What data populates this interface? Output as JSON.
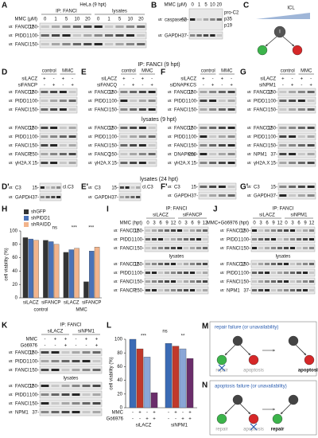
{
  "ib_prefix": "IB:",
  "sections": [
    "IP: FANCI (9 hpt)",
    "lysates (9 hpt)",
    "lysates (24 hpt)"
  ],
  "panels": [
    {
      "label": "A",
      "title": "HeLa (9 hpt)",
      "groups": [
        "IP: FANCI",
        "lysates"
      ],
      "cond": "MMC (μM)",
      "lanes": [
        "0",
        "1",
        "5",
        "10",
        "20",
        "0",
        "1",
        "5",
        "10",
        "20"
      ],
      "blots": [
        {
          "rows": [
            {
              "ib": "FANCD2",
              "mw": "150-"
            },
            {
              "ib": "PIDD1",
              "mw": "100-"
            },
            {
              "ib": "FANCI",
              "mw": "150-"
            }
          ]
        }
      ]
    },
    {
      "label": "B",
      "cond": "MMC (μM)",
      "lanes": [
        "0",
        "1",
        "5",
        "10",
        "20"
      ],
      "blots": [
        {
          "rows": [
            {
              "ib": "caspase-2",
              "mw": "50-",
              "notes": [
                "pro-C2",
                "p35",
                "p19"
              ]
            },
            {
              "ib": "GAPDH",
              "mw": "37-"
            }
          ]
        }
      ]
    },
    {
      "label": "C",
      "kind": "diagram",
      "texts": [
        "ICL",
        "I"
      ]
    },
    {
      "label": "D",
      "groups": [
        "control",
        "MMC"
      ],
      "toggles": [
        {
          "name": "siLACZ",
          "signs": [
            "+",
            "-",
            "+",
            "-"
          ]
        },
        {
          "name": "siFANCP",
          "signs": [
            "-",
            "+",
            "-",
            "+"
          ]
        }
      ],
      "blots": [
        {
          "rows": [
            {
              "ib": "FANCD2",
              "mw": "150-"
            },
            {
              "ib": "PIDD1",
              "mw": "100-"
            },
            {
              "ib": "FANCI",
              "mw": "150-"
            }
          ]
        },
        {
          "rows": [
            {
              "ib": "FANCD2",
              "mw": "150-"
            },
            {
              "ib": "PIDD1",
              "mw": "100-"
            },
            {
              "ib": "FANCI",
              "mw": "150-"
            },
            {
              "ib": "FANCP",
              "mw": "250-"
            },
            {
              "ib": "γH2A.X",
              "mw": "15-"
            }
          ]
        }
      ]
    },
    {
      "label": "E",
      "groups": [
        "control",
        "MMC"
      ],
      "toggles": [
        {
          "name": "siLACZ",
          "signs": [
            "+",
            "-",
            "+",
            "-"
          ]
        },
        {
          "name": "siFANCQ",
          "signs": [
            "-",
            "+",
            "-",
            "+"
          ]
        }
      ],
      "blots": [
        {
          "rows": [
            {
              "ib": "FANCD2",
              "mw": "150-"
            },
            {
              "ib": "PIDD1",
              "mw": "100-"
            },
            {
              "ib": "FANCI",
              "mw": "150-"
            }
          ]
        },
        {
          "rows": [
            {
              "ib": "FANCD2",
              "mw": "150-"
            },
            {
              "ib": "PIDD1",
              "mw": "100-"
            },
            {
              "ib": "FANCI",
              "mw": "150-"
            },
            {
              "ib": "FANCQ",
              "mw": "150-"
            },
            {
              "ib": "γH2A.X",
              "mw": "15-"
            }
          ]
        }
      ]
    },
    {
      "label": "F",
      "groups": [
        "control",
        "MMC"
      ],
      "toggles": [
        {
          "name": "siLACZ",
          "signs": [
            "+",
            "-",
            "+",
            "-"
          ]
        },
        {
          "name": "siDNAPKCS",
          "signs": [
            "-",
            "+",
            "-",
            "+"
          ]
        }
      ],
      "blots": [
        {
          "rows": [
            {
              "ib": "FANCD2",
              "mw": "150-"
            },
            {
              "ib": "PIDD1",
              "mw": "100-"
            },
            {
              "ib": "FANCI",
              "mw": "150-"
            }
          ]
        },
        {
          "rows": [
            {
              "ib": "FANCD2",
              "mw": "150-"
            },
            {
              "ib": "PIDD1",
              "mw": "100-"
            },
            {
              "ib": "FANCI",
              "mw": "150-"
            },
            {
              "ib": "DNAPKcs",
              "mw": "250-"
            },
            {
              "ib": "γH2A.X",
              "mw": "15-"
            }
          ]
        }
      ]
    },
    {
      "label": "G",
      "groups": [
        "control",
        "MMC"
      ],
      "toggles": [
        {
          "name": "siLACZ",
          "signs": [
            "+",
            "-",
            "+",
            "-"
          ]
        },
        {
          "name": "siNPM1",
          "signs": [
            "-",
            "+",
            "-",
            "+"
          ]
        }
      ],
      "blots": [
        {
          "rows": [
            {
              "ib": "FANCD2",
              "mw": "150-"
            },
            {
              "ib": "PIDD1",
              "mw": "100-"
            },
            {
              "ib": "FANCI",
              "mw": "150-"
            }
          ]
        },
        {
          "rows": [
            {
              "ib": "FANCD2",
              "mw": "150-"
            },
            {
              "ib": "PIDD1",
              "mw": "100-"
            },
            {
              "ib": "FANCI",
              "mw": "150-"
            },
            {
              "ib": "NPM1",
              "mw": "37-"
            },
            {
              "ib": "γH2A.X",
              "mw": "15-"
            }
          ]
        }
      ]
    },
    {
      "label": "D'",
      "blots": [
        {
          "rows": [
            {
              "ib": "C3",
              "mw": "15-",
              "notes": [
                "cl.C3"
              ]
            },
            {
              "ib": "GAPDH",
              "mw": "37-"
            }
          ]
        }
      ]
    },
    {
      "label": "E'",
      "blots": [
        {
          "rows": [
            {
              "ib": "C3",
              "mw": "15-",
              "notes": [
                "cl.C3"
              ]
            },
            {
              "ib": "GAPDH",
              "mw": "37-"
            }
          ]
        }
      ]
    },
    {
      "label": "F'",
      "blots": [
        {
          "rows": [
            {
              "ib": "C3",
              "mw": "15-"
            },
            {
              "ib": "GAPDH",
              "mw": "37-"
            }
          ]
        }
      ]
    },
    {
      "label": "G'",
      "blots": [
        {
          "rows": [
            {
              "ib": "C3",
              "mw": "15-"
            },
            {
              "ib": "GAPDH",
              "mw": "37-"
            }
          ]
        }
      ]
    },
    {
      "label": "H",
      "kind": "bar",
      "ylabel": "cell viability (%)",
      "ylim": [
        0,
        100
      ],
      "yticks": [
        0,
        20,
        40,
        60,
        80,
        100
      ],
      "categories": [
        "siLACZ",
        "siFANCP",
        "siLACZ",
        "siFANCP"
      ],
      "groups": [
        "control",
        "MMC"
      ],
      "series": [
        {
          "name": "shGFP",
          "color": "#333333",
          "values": [
            90,
            86,
            68,
            24
          ]
        },
        {
          "name": "shPIDD1",
          "color": "#4a72b8",
          "values": [
            88,
            84,
            72,
            70
          ]
        },
        {
          "name": "shRAIDD",
          "color": "#f2b48c",
          "values": [
            86,
            80,
            74,
            76
          ]
        }
      ],
      "annotations": [
        "ns",
        "***",
        "***"
      ]
    },
    {
      "label": "I",
      "title": "IP: FANCI",
      "groups": [
        "siLACZ",
        "siFANCP"
      ],
      "cond": "MMC (hpt)",
      "lanes": [
        "0",
        "3",
        "6",
        "9",
        "12",
        "0",
        "3",
        "6",
        "9",
        "12"
      ],
      "blots": [
        {
          "rows": [
            {
              "ib": "FANCD2",
              "mw": "150-"
            },
            {
              "ib": "PIDD1",
              "mw": "100-"
            },
            {
              "ib": "FANCI",
              "mw": "150-"
            }
          ]
        },
        {
          "head": "lysates",
          "rows": [
            {
              "ib": "FANCD2",
              "mw": "150-"
            },
            {
              "ib": "PIDD1",
              "mw": "100-"
            },
            {
              "ib": "FANCI",
              "mw": "150-"
            },
            {
              "ib": "FANCP",
              "mw": "250-"
            }
          ]
        }
      ]
    },
    {
      "label": "J",
      "title": "IP: FANCI",
      "groups": [
        "siLACZ",
        "siNPM1"
      ],
      "cond": "MMC+Gö6976 (hpt)",
      "lanes": [
        "0",
        "3",
        "6",
        "9",
        "12",
        "0",
        "3",
        "6",
        "9",
        "12"
      ],
      "blots": [
        {
          "rows": [
            {
              "ib": "FANCD2",
              "mw": "150-"
            },
            {
              "ib": "PIDD1",
              "mw": "100-"
            },
            {
              "ib": "FANCI",
              "mw": "150-"
            }
          ]
        },
        {
          "head": "lysates",
          "rows": [
            {
              "ib": "FANCD2",
              "mw": "150-"
            },
            {
              "ib": "PIDD1",
              "mw": "100-"
            },
            {
              "ib": "FANCI",
              "mw": "150-"
            },
            {
              "ib": "NPM1",
              "mw": "37-"
            }
          ]
        }
      ]
    },
    {
      "label": "K",
      "title": "IP: FANCI",
      "groups": [
        "siLACZ",
        "siNPM1"
      ],
      "toggles": [
        {
          "name": "MMC",
          "signs": [
            "-",
            "+",
            "+",
            "-",
            "+",
            "+"
          ]
        },
        {
          "name": "Gö6976",
          "signs": [
            "-",
            "-",
            "+",
            "-",
            "-",
            "+"
          ]
        }
      ],
      "blots": [
        {
          "rows": [
            {
              "ib": "FANCD2",
              "mw": "150-"
            },
            {
              "ib": "PIDD1",
              "mw": "100-"
            },
            {
              "ib": "FANCI",
              "mw": "150-"
            }
          ]
        },
        {
          "head": "lysates",
          "rows": [
            {
              "ib": "FANCD2",
              "mw": "150-"
            },
            {
              "ib": "PIDD1",
              "mw": "100-"
            },
            {
              "ib": "FANCI",
              "mw": "150-"
            },
            {
              "ib": "NPM1",
              "mw": "37-"
            }
          ]
        }
      ]
    },
    {
      "label": "L",
      "kind": "bar",
      "ylabel": "cell viability (%)",
      "ylim": [
        0,
        100
      ],
      "yticks": [
        0,
        20,
        40,
        60,
        80,
        100
      ],
      "categories": [
        "siLACZ",
        "siNPM1"
      ],
      "series": [
        {
          "color": "#3b6bb5",
          "values": [
            100,
            94
          ]
        },
        {
          "color": "#c0392b",
          "values": [
            86,
            90
          ]
        },
        {
          "color": "#8aa6d6",
          "values": [
            74,
            86
          ]
        },
        {
          "color": "#6b2d6b",
          "values": [
            22,
            72
          ]
        }
      ],
      "toggles": [
        {
          "name": "MMC",
          "signs": [
            "-",
            "+",
            "-",
            "+",
            "-",
            "+",
            "-",
            "+"
          ]
        },
        {
          "name": "Gö6976",
          "signs": [
            "-",
            "-",
            "+",
            "+",
            "-",
            "-",
            "+",
            "+"
          ]
        }
      ],
      "annotations": [
        "***",
        "ns",
        "**"
      ]
    },
    {
      "label": "M",
      "kind": "scheme",
      "title": "repair failure (or unavailability)",
      "paths": [
        "repair",
        "apoptosis"
      ],
      "outcome": "apoptosis"
    },
    {
      "label": "N",
      "kind": "scheme",
      "title": "apoptosis failure (or unavailability)",
      "paths": [
        "repair",
        "apoptosis"
      ],
      "outcome": "repair"
    }
  ]
}
